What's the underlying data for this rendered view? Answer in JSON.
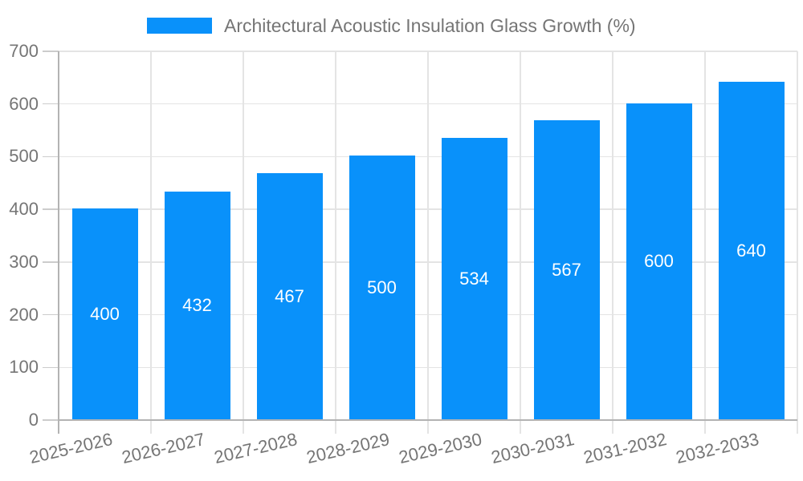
{
  "chart_data": {
    "type": "bar",
    "title": "Architectural Acoustic Insulation Glass Growth (%)",
    "categories": [
      "2025-2026",
      "2026-2027",
      "2027-2028",
      "2028-2029",
      "2029-2030",
      "2030-2031",
      "2031-2032",
      "2032-2033"
    ],
    "series": [
      {
        "name": "Architectural Acoustic Insulation Glass Growth (%)",
        "values": [
          400,
          432,
          467,
          500,
          534,
          567,
          600,
          640
        ]
      }
    ],
    "bar_value_labels": [
      400,
      432,
      467,
      500,
      534,
      567,
      600,
      640
    ],
    "ylim": [
      0,
      700
    ],
    "yticks": [
      0,
      100,
      200,
      300,
      400,
      500,
      600,
      700
    ],
    "xlabel": "",
    "ylabel": "",
    "grid": true,
    "legend_position": "top-center",
    "colors": {
      "bar": "#0991fa",
      "bar_label_text": "#ffffff",
      "axis_text": "#757575",
      "title_text": "#757575",
      "gridline": "#e4e4e4",
      "axis_line": "#b3b3b3",
      "y_tick": "#cccccc"
    }
  }
}
